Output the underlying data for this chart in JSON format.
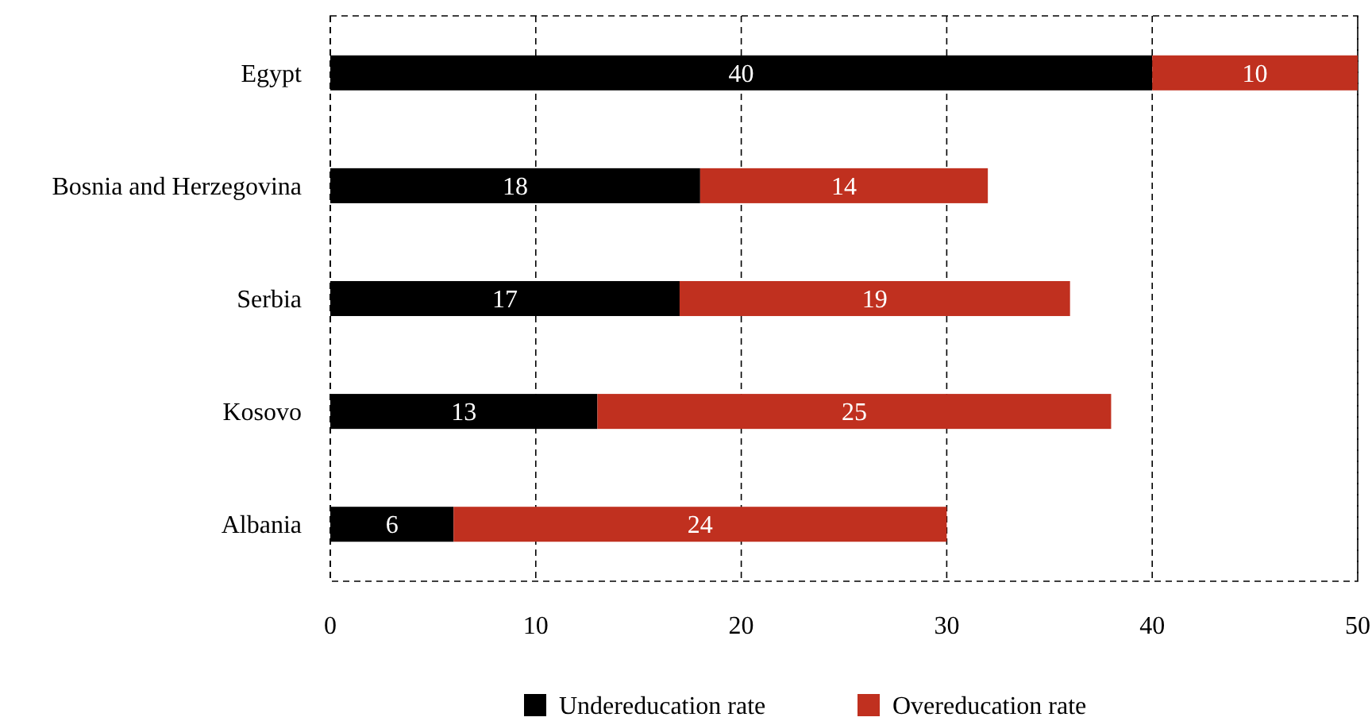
{
  "chart_data": {
    "type": "bar",
    "orientation": "horizontal",
    "stacked": true,
    "categories": [
      "Egypt",
      "Bosnia and Herzegovina",
      "Serbia",
      "Kosovo",
      "Albania"
    ],
    "series": [
      {
        "name": "Undereducation rate",
        "color": "#000000",
        "values": [
          40,
          18,
          17,
          13,
          6
        ]
      },
      {
        "name": "Overeducation rate",
        "color": "#c0301f",
        "values": [
          10,
          14,
          19,
          25,
          24
        ]
      }
    ],
    "xlim": [
      0,
      50
    ],
    "xticks": [
      0,
      10,
      20,
      30,
      40,
      50
    ],
    "grid": "x",
    "legend": "bottom",
    "data_labels": true
  }
}
